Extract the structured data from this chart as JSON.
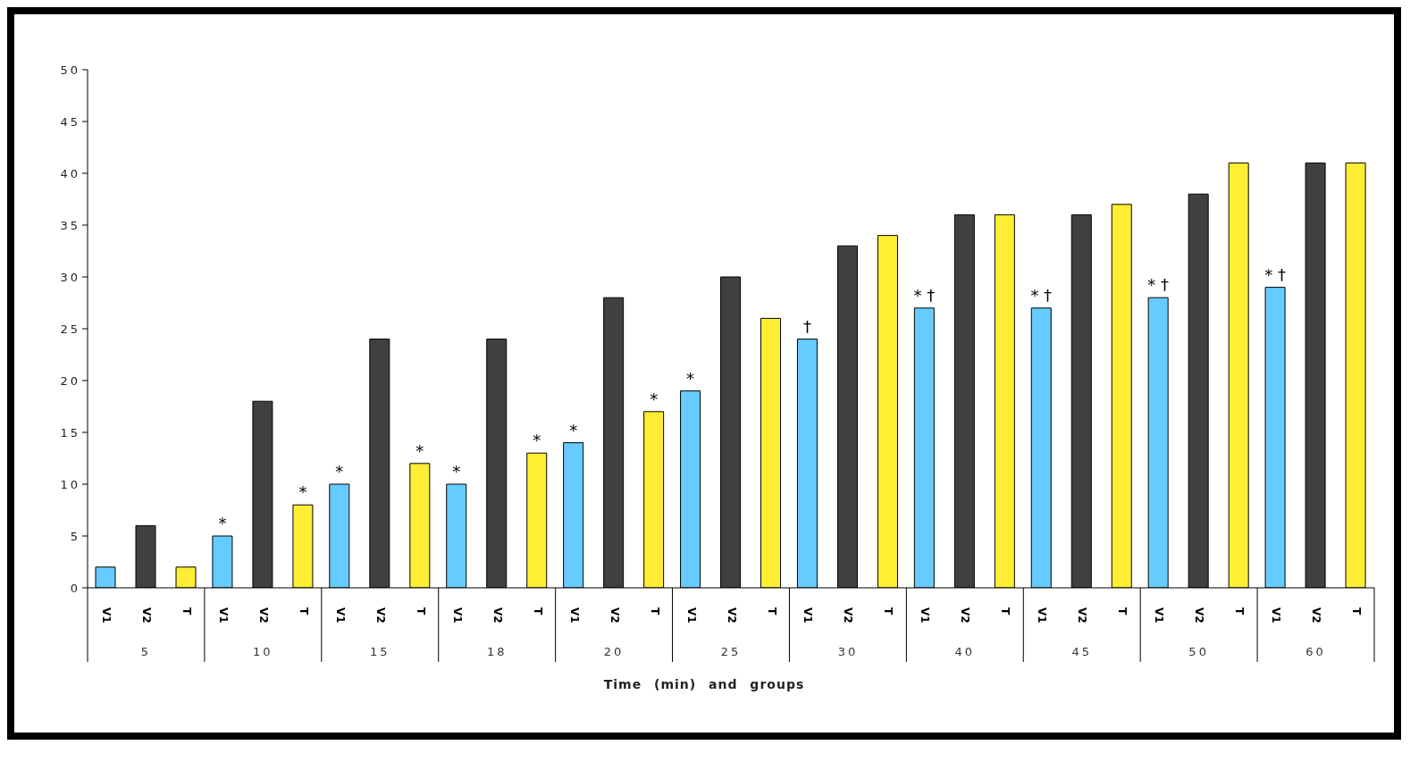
{
  "chart_data": {
    "type": "bar",
    "xlabel": "Time (min) and groups",
    "categories": [
      "5",
      "10",
      "15",
      "18",
      "20",
      "25",
      "30",
      "40",
      "45",
      "50",
      "60"
    ],
    "series": [
      {
        "name": "V1",
        "color": "#66ccff",
        "values": [
          2,
          5,
          10,
          10,
          14,
          19,
          24,
          27,
          27,
          28,
          29
        ],
        "value_labels": [
          null,
          "*",
          "*",
          "*",
          "*",
          "*",
          "†",
          "* †",
          "* †",
          "* †",
          "* †"
        ]
      },
      {
        "name": "V2",
        "color": "#404040",
        "values": [
          6,
          18,
          24,
          24,
          28,
          30,
          33,
          36,
          36,
          38,
          41
        ]
      },
      {
        "name": "T",
        "color": "#ffee33",
        "values": [
          2,
          8,
          12,
          13,
          17,
          26,
          34,
          36,
          37,
          41,
          41
        ],
        "value_labels": [
          null,
          "*",
          "*",
          "*",
          "*",
          null,
          null,
          null,
          null,
          null,
          null
        ]
      }
    ],
    "ylim": [
      0,
      50
    ],
    "yticks": [
      0,
      5,
      10,
      15,
      20,
      25,
      30,
      35,
      40,
      45,
      50
    ],
    "grid": false,
    "legend": false
  }
}
